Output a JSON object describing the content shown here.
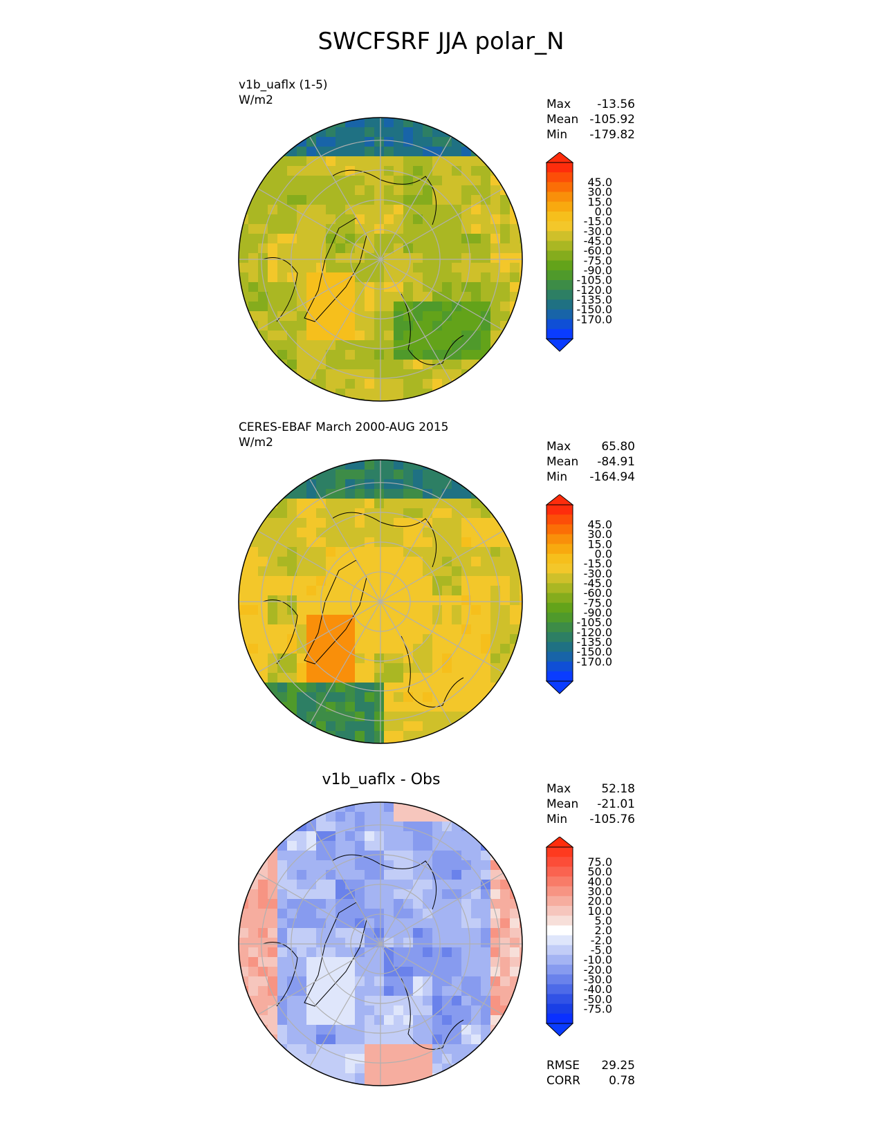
{
  "title": "SWCFSRF JJA polar_N",
  "panels": [
    {
      "title_line1": "v1b_uaflx (1-5)",
      "title_line2": "W/m2",
      "center_title": "",
      "stats": [
        {
          "label": "Max",
          "value": "-13.56"
        },
        {
          "label": "Mean",
          "value": "-105.92"
        },
        {
          "label": "Min",
          "value": "-179.82"
        }
      ],
      "colorbar": {
        "labels": [
          "45.0",
          "30.0",
          "15.0",
          "0.0",
          "-15.0",
          "-30.0",
          "-45.0",
          "-60.0",
          "-75.0",
          "-90.0",
          "-105.0",
          "-120.0",
          "-135.0",
          "-150.0",
          "-170.0"
        ],
        "colors": [
          "#fe2d0c",
          "#fc4e08",
          "#fb6e06",
          "#f98f0a",
          "#f8a90f",
          "#f6bf1c",
          "#f3c72a",
          "#cfc02a",
          "#aab723",
          "#85ac1d",
          "#63a31a",
          "#4f9a2b",
          "#3d8c47",
          "#2d7f64",
          "#1f7183",
          "#1864a8",
          "#0f4fd6",
          "#0a3cff"
        ],
        "top_color": "#fe2d0c",
        "bottom_color": "#0a3cff"
      },
      "extra_stats": []
    },
    {
      "title_line1": "CERES-EBAF March 2000-AUG 2015",
      "title_line2": "W/m2",
      "center_title": "",
      "stats": [
        {
          "label": "Max",
          "value": "65.80"
        },
        {
          "label": "Mean",
          "value": "-84.91"
        },
        {
          "label": "Min",
          "value": "-164.94"
        }
      ],
      "colorbar": {
        "labels": [
          "45.0",
          "30.0",
          "15.0",
          "0.0",
          "-15.0",
          "-30.0",
          "-45.0",
          "-60.0",
          "-75.0",
          "-90.0",
          "-105.0",
          "-120.0",
          "-135.0",
          "-150.0",
          "-170.0"
        ],
        "colors": [
          "#fe2d0c",
          "#fc4e08",
          "#fb6e06",
          "#f98f0a",
          "#f8a90f",
          "#f6bf1c",
          "#f3c72a",
          "#cfc02a",
          "#aab723",
          "#85ac1d",
          "#63a31a",
          "#4f9a2b",
          "#3d8c47",
          "#2d7f64",
          "#1f7183",
          "#1864a8",
          "#0f4fd6",
          "#0a3cff"
        ],
        "top_color": "#fe2d0c",
        "bottom_color": "#0a3cff"
      },
      "extra_stats": []
    },
    {
      "title_line1": "",
      "title_line2": "",
      "center_title": "v1b_uaflx - Obs",
      "stats": [
        {
          "label": "Max",
          "value": "52.18"
        },
        {
          "label": "Mean",
          "value": "-21.01"
        },
        {
          "label": "Min",
          "value": "-105.76"
        }
      ],
      "colorbar": {
        "labels": [
          "75.0",
          "50.0",
          "40.0",
          "30.0",
          "20.0",
          "10.0",
          "5.0",
          "2.0",
          "-2.0",
          "-5.0",
          "-10.0",
          "-20.0",
          "-30.0",
          "-40.0",
          "-50.0",
          "-75.0"
        ],
        "colors": [
          "#fe3a1f",
          "#fc4d38",
          "#fa6350",
          "#f87b68",
          "#f79483",
          "#f6ad9f",
          "#f6c6bd",
          "#f7dfd9",
          "#ffffff",
          "#dfe6fb",
          "#c2cdf7",
          "#a4b4f3",
          "#879bef",
          "#6a82eb",
          "#4d6ae8",
          "#3152e6",
          "#1a3fe6",
          "#0a30ff"
        ],
        "top_color": "#fe2d0c",
        "bottom_color": "#0a3cff"
      },
      "extra_stats": [
        {
          "label": "RMSE",
          "value": "29.25"
        },
        {
          "label": "CORR",
          "value": "0.78"
        }
      ]
    }
  ],
  "chart_data": [
    {
      "type": "heatmap",
      "title": "v1b_uaflx (1-5)",
      "units": "W/m2",
      "projection": "north polar stereographic",
      "stats": {
        "max": -13.56,
        "mean": -105.92,
        "min": -179.82
      },
      "levels": [
        -170,
        -150,
        -135,
        -120,
        -105,
        -90,
        -75,
        -60,
        -45,
        -30,
        -15,
        0,
        15,
        30,
        45
      ],
      "colormap": "blue-green-yellow-orange-red"
    },
    {
      "type": "heatmap",
      "title": "CERES-EBAF March 2000-AUG 2015",
      "units": "W/m2",
      "projection": "north polar stereographic",
      "stats": {
        "max": 65.8,
        "mean": -84.91,
        "min": -164.94
      },
      "levels": [
        -170,
        -150,
        -135,
        -120,
        -105,
        -90,
        -75,
        -60,
        -45,
        -30,
        -15,
        0,
        15,
        30,
        45
      ],
      "colormap": "blue-green-yellow-orange-red"
    },
    {
      "type": "heatmap",
      "title": "v1b_uaflx - Obs",
      "projection": "north polar stereographic",
      "stats": {
        "max": 52.18,
        "mean": -21.01,
        "min": -105.76,
        "rmse": 29.25,
        "corr": 0.78
      },
      "levels": [
        -75,
        -50,
        -40,
        -30,
        -20,
        -10,
        -5,
        -2,
        2,
        5,
        10,
        20,
        30,
        40,
        50,
        75
      ],
      "colormap": "blue-white-red"
    }
  ]
}
